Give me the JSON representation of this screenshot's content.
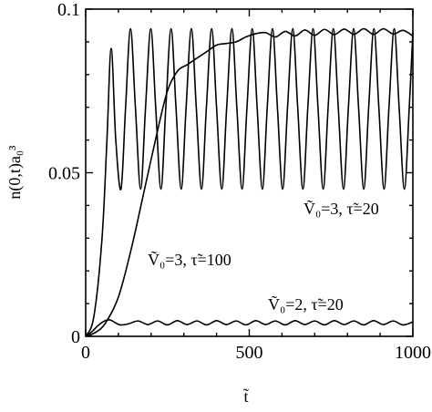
{
  "chart_data": {
    "type": "line",
    "xlim": [
      0,
      1000
    ],
    "ylim": [
      0,
      0.1
    ],
    "x_ticks": [
      0,
      500,
      1000
    ],
    "x_tick_labels": [
      "0",
      "500",
      "1000"
    ],
    "y_ticks": [
      0,
      0.05,
      0.1
    ],
    "y_tick_labels": [
      "0",
      "0.05",
      "0.1"
    ],
    "xlabel": "t̃",
    "ylabel": "n(0,t)a₀³",
    "grid": false,
    "legend": "none",
    "annotations": [
      {
        "text": "Ṽ₀=3, τ̃=20"
      },
      {
        "text": "Ṽ₀=3, τ̃=100"
      },
      {
        "text": "Ṽ₀=2, τ̃=20"
      }
    ],
    "series": [
      {
        "x": [
          0,
          25,
          50,
          65,
          78,
          92,
          108,
          122,
          137,
          152,
          168,
          183,
          199,
          214,
          230,
          245,
          261,
          276,
          292,
          307,
          323,
          338,
          354,
          369,
          385,
          400,
          416,
          431,
          447,
          462,
          478,
          493,
          509,
          524,
          540,
          555,
          571,
          586,
          602,
          617,
          633,
          648,
          664,
          679,
          695,
          710,
          726,
          741,
          757,
          772,
          788,
          803,
          819,
          834,
          850,
          865,
          881,
          896,
          912,
          927,
          943,
          958,
          974,
          989,
          1000
        ],
        "y": [
          0,
          0.006,
          0.03,
          0.06,
          0.088,
          0.06,
          0.045,
          0.07,
          0.094,
          0.07,
          0.045,
          0.07,
          0.094,
          0.07,
          0.045,
          0.07,
          0.094,
          0.07,
          0.045,
          0.07,
          0.094,
          0.07,
          0.045,
          0.07,
          0.094,
          0.07,
          0.045,
          0.07,
          0.094,
          0.07,
          0.045,
          0.07,
          0.094,
          0.07,
          0.045,
          0.07,
          0.094,
          0.07,
          0.045,
          0.07,
          0.094,
          0.07,
          0.045,
          0.07,
          0.094,
          0.07,
          0.045,
          0.07,
          0.094,
          0.07,
          0.045,
          0.07,
          0.094,
          0.07,
          0.045,
          0.07,
          0.094,
          0.07,
          0.045,
          0.07,
          0.094,
          0.07,
          0.045,
          0.07,
          0.093
        ]
      },
      {
        "x": [
          0,
          30,
          60,
          100,
          140,
          180,
          220,
          250,
          280,
          310,
          340,
          370,
          400,
          430,
          460,
          490,
          520,
          550,
          580,
          610,
          640,
          670,
          700,
          730,
          760,
          790,
          820,
          850,
          880,
          910,
          940,
          970,
          1000
        ],
        "y": [
          0,
          0.0012,
          0.004,
          0.012,
          0.027,
          0.045,
          0.063,
          0.075,
          0.081,
          0.083,
          0.085,
          0.087,
          0.089,
          0.0895,
          0.09,
          0.0915,
          0.0925,
          0.0928,
          0.0915,
          0.0932,
          0.0918,
          0.0936,
          0.092,
          0.0938,
          0.0922,
          0.0939,
          0.0923,
          0.094,
          0.0923,
          0.094,
          0.0924,
          0.0935,
          0.0918
        ]
      },
      {
        "x": [
          0,
          20,
          40,
          60,
          75,
          90,
          105,
          130,
          160,
          190,
          220,
          250,
          280,
          310,
          340,
          370,
          400,
          430,
          460,
          490,
          520,
          550,
          580,
          610,
          640,
          670,
          700,
          730,
          760,
          790,
          820,
          850,
          880,
          910,
          940,
          970,
          1000
        ],
        "y": [
          0,
          0.0015,
          0.0035,
          0.0048,
          0.005,
          0.0042,
          0.0035,
          0.0038,
          0.0047,
          0.0036,
          0.0047,
          0.0035,
          0.0048,
          0.0036,
          0.0047,
          0.0035,
          0.0048,
          0.0036,
          0.0047,
          0.0035,
          0.0048,
          0.0036,
          0.0047,
          0.0035,
          0.0048,
          0.0036,
          0.0047,
          0.0035,
          0.0048,
          0.0036,
          0.0047,
          0.0035,
          0.0048,
          0.0036,
          0.0047,
          0.0035,
          0.0044
        ]
      }
    ]
  }
}
